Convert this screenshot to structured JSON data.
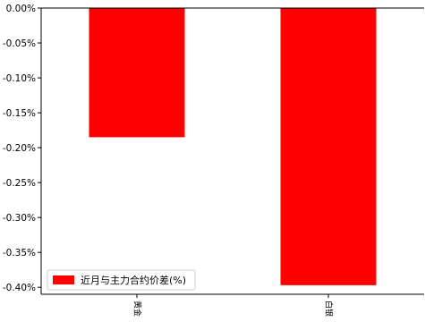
{
  "chart_data": {
    "type": "bar",
    "categories": [
      "黄金",
      "白银"
    ],
    "series": [
      {
        "name": "近月与主力合约价差(%)",
        "values": [
          -0.185,
          -0.397
        ]
      }
    ],
    "ylim": [
      -0.41,
      0.0
    ],
    "yticks": [
      0.0,
      -0.05,
      -0.1,
      -0.15,
      -0.2,
      -0.25,
      -0.3,
      -0.35,
      -0.4
    ],
    "ytick_labels": [
      "0.00%",
      "-0.05%",
      "-0.10%",
      "-0.15%",
      "-0.20%",
      "-0.25%",
      "-0.30%",
      "-0.35%",
      "-0.40%"
    ],
    "bar_color": "#ff0000",
    "grid": false,
    "legend_position": "lower-left"
  }
}
